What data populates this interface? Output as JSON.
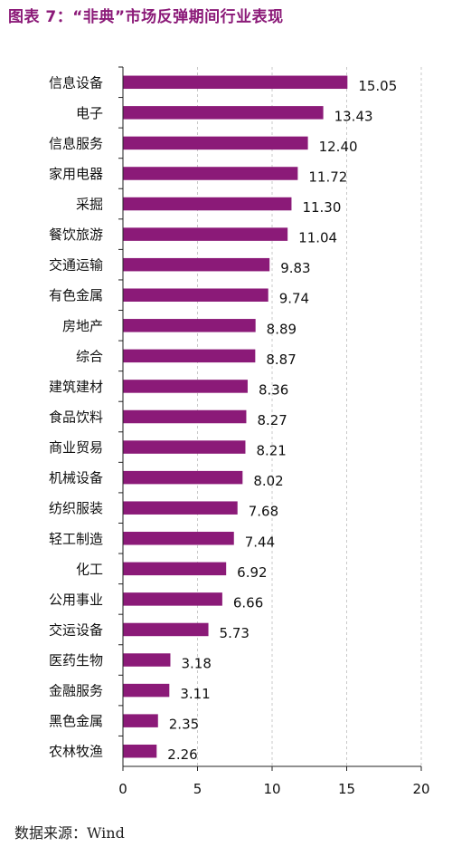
{
  "title": "图表 7：“非典”市场反弹期间行业表现",
  "source": "数据来源：Wind",
  "colors": {
    "bar": "#8b1a78",
    "title": "#8b1a78",
    "grid": "#c9c9c9"
  },
  "chart_data": {
    "type": "bar",
    "orientation": "horizontal",
    "title": "图表 7：“非典”市场反弹期间行业表现",
    "categories": [
      "信息设备",
      "电子",
      "信息服务",
      "家用电器",
      "采掘",
      "餐饮旅游",
      "交通运输",
      "有色金属",
      "房地产",
      "综合",
      "建筑建材",
      "食品饮料",
      "商业贸易",
      "机械设备",
      "纺织服装",
      "轻工制造",
      "化工",
      "公用事业",
      "交运设备",
      "医药生物",
      "金融服务",
      "黑色金属",
      "农林牧渔"
    ],
    "values": [
      15.05,
      13.43,
      12.4,
      11.72,
      11.3,
      11.04,
      9.83,
      9.74,
      8.89,
      8.87,
      8.36,
      8.27,
      8.21,
      8.02,
      7.68,
      7.44,
      6.92,
      6.66,
      5.73,
      3.18,
      3.11,
      2.35,
      2.26
    ],
    "value_labels": [
      "15.05",
      "13.43",
      "12.40",
      "11.72",
      "11.30",
      "11.04",
      "9.83",
      "9.74",
      "8.89",
      "8.87",
      "8.36",
      "8.27",
      "8.21",
      "8.02",
      "7.68",
      "7.44",
      "6.92",
      "6.66",
      "5.73",
      "3.18",
      "3.11",
      "2.35",
      "2.26"
    ],
    "xlim": [
      0,
      20
    ],
    "xticks": [
      "0",
      "5",
      "10",
      "15",
      "20"
    ],
    "grid": "vertical dashed",
    "legend": "none"
  }
}
